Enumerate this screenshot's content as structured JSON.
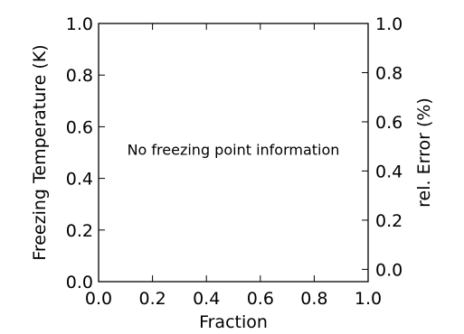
{
  "chart_data": {
    "type": "line",
    "xlabel": "Fraction",
    "ylabel": "Freezing Temperature (K)",
    "y2label": "rel. Error (%)",
    "xlim": [
      0.0,
      1.0
    ],
    "ylim": [
      0.0,
      1.0
    ],
    "y2lim": [
      -0.05,
      1.0
    ],
    "x_ticks": [
      "0.0",
      "0.2",
      "0.4",
      "0.6",
      "0.8",
      "1.0"
    ],
    "x_tick_values": [
      0.0,
      0.2,
      0.4,
      0.6,
      0.8,
      1.0
    ],
    "y_ticks": [
      "0.0",
      "0.2",
      "0.4",
      "0.6",
      "0.8",
      "1.0"
    ],
    "y_tick_values": [
      0.0,
      0.2,
      0.4,
      0.6,
      0.8,
      1.0
    ],
    "y2_ticks": [
      "0.0",
      "0.2",
      "0.4",
      "0.6",
      "0.8",
      "1.0"
    ],
    "y2_tick_values": [
      0.0,
      0.2,
      0.4,
      0.6,
      0.8,
      1.0
    ],
    "grid": false,
    "series": [],
    "annotation": "No freezing point information"
  }
}
